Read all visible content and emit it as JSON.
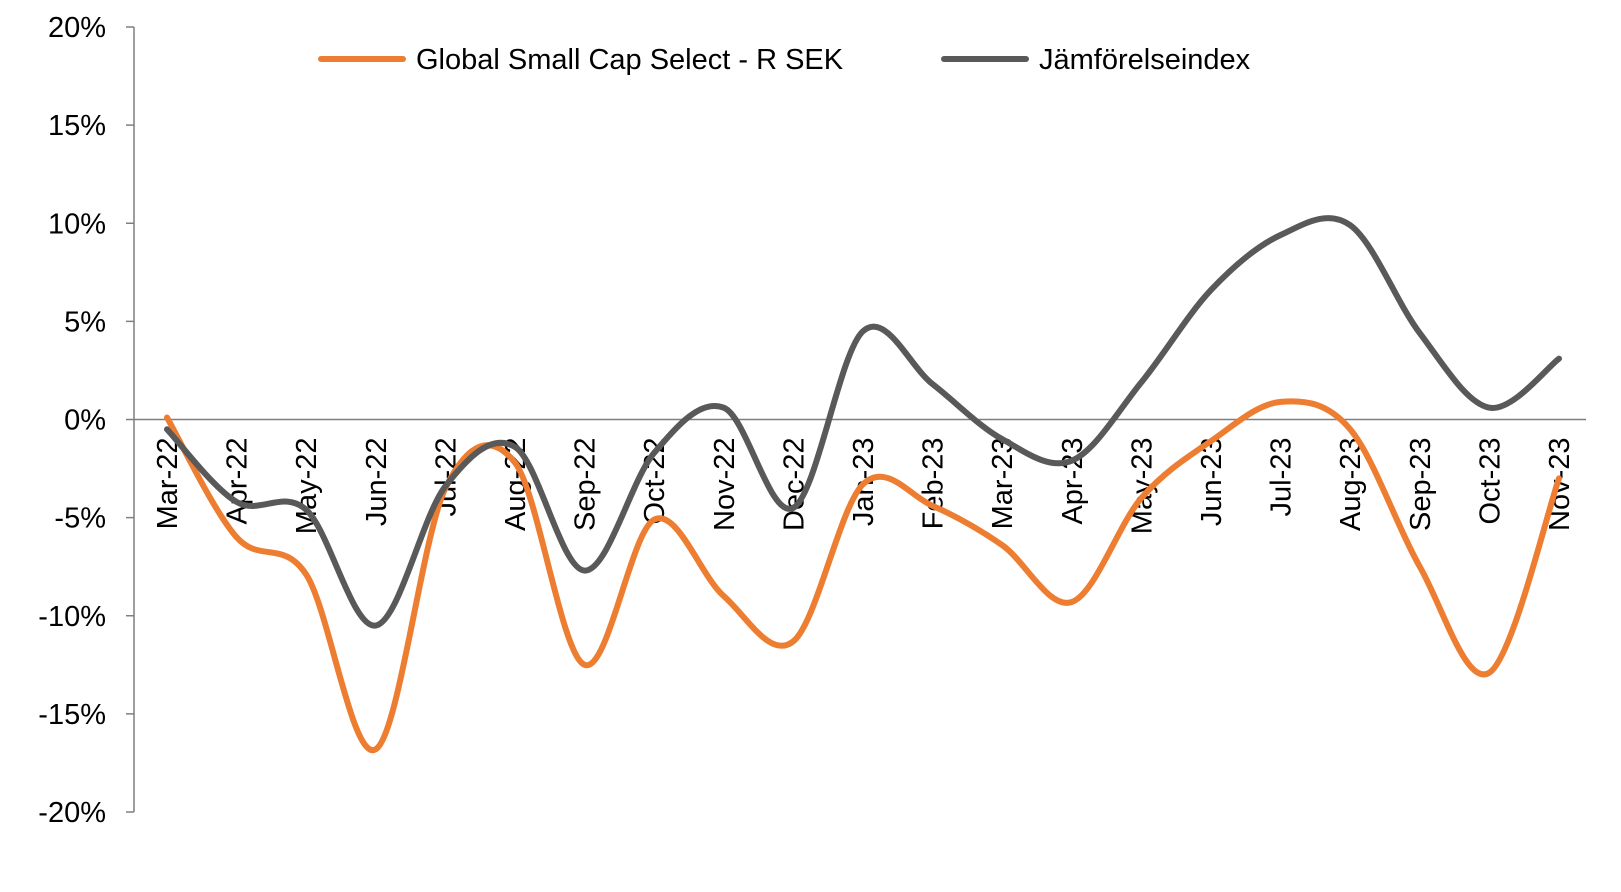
{
  "chart_data": {
    "type": "line",
    "title": "",
    "xlabel": "",
    "ylabel": "",
    "categories": [
      "Mar-22",
      "Apr-22",
      "May-22",
      "Jun-22",
      "Jul-22",
      "Aug-22",
      "Sep-22",
      "Oct-22",
      "Nov-22",
      "Dec-22",
      "Jan-23",
      "Feb-23",
      "Mar-23",
      "Apr-23",
      "May-23",
      "Jun-23",
      "Jul-23",
      "Aug-23",
      "Sep-23",
      "Oct-23",
      "Nov-23"
    ],
    "ylim": [
      -20,
      20
    ],
    "yticks": [
      -20,
      -15,
      -10,
      -5,
      0,
      5,
      10,
      15,
      20
    ],
    "ytick_labels": [
      "-20%",
      "-15%",
      "-10%",
      "-5%",
      "0%",
      "5%",
      "10%",
      "15%",
      "20%"
    ],
    "grid": false,
    "legend_position": "top",
    "series": [
      {
        "name": "Global Small Cap Select - R SEK",
        "color": "#ED7D31",
        "values": [
          0.1,
          -6.0,
          -7.9,
          -16.8,
          -3.5,
          -2.2,
          -12.5,
          -5.1,
          -9.0,
          -11.3,
          -3.3,
          -4.4,
          -6.4,
          -9.3,
          -4.0,
          -1.1,
          0.9,
          -0.5,
          -7.5,
          -12.9,
          -3.0
        ]
      },
      {
        "name": "Jämförelseindex",
        "color": "#595959",
        "values": [
          -0.5,
          -4.2,
          -4.6,
          -10.5,
          -3.4,
          -1.4,
          -7.7,
          -1.7,
          0.6,
          -4.5,
          4.5,
          1.8,
          -1.0,
          -2.1,
          1.9,
          6.6,
          9.4,
          9.9,
          4.4,
          0.6,
          3.1
        ]
      }
    ]
  }
}
